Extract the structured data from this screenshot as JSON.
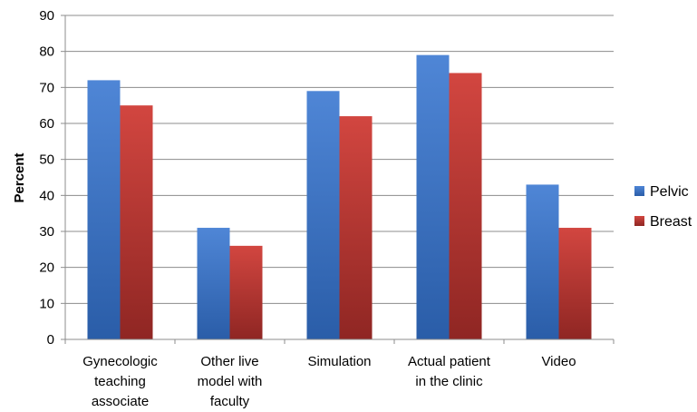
{
  "chart_data": {
    "type": "bar",
    "title": "",
    "xlabel": "",
    "ylabel": "Percent",
    "ylim": [
      0,
      90
    ],
    "yticks": [
      0,
      10,
      20,
      30,
      40,
      50,
      60,
      70,
      80,
      90
    ],
    "grid": true,
    "legend_position": "right",
    "categories": [
      [
        "Gynecologic",
        "teaching",
        "associate"
      ],
      [
        "Other live",
        "model with",
        "faculty"
      ],
      [
        "Simulation"
      ],
      [
        "Actual patient",
        "in the clinic"
      ],
      [
        "Video"
      ]
    ],
    "series": [
      {
        "name": "Pelvic",
        "values": [
          72,
          31,
          69,
          79,
          43
        ],
        "color": "#4a7fc9"
      },
      {
        "name": "Breast",
        "values": [
          65,
          26,
          62,
          74,
          31
        ],
        "color": "#c0392b"
      }
    ]
  }
}
